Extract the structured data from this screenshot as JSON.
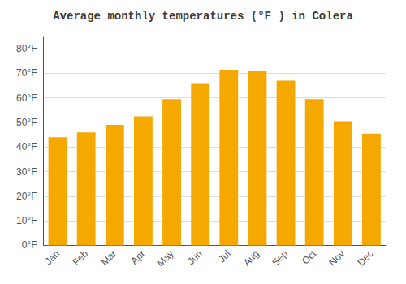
{
  "chart_data": {
    "type": "bar",
    "title": "Average monthly temperatures (°F ) in Colera",
    "categories": [
      "Jan",
      "Feb",
      "Mar",
      "Apr",
      "May",
      "Jun",
      "Jul",
      "Aug",
      "Sep",
      "Oct",
      "Nov",
      "Dec"
    ],
    "values": [
      44,
      46,
      49,
      52.5,
      59.5,
      66,
      71.5,
      71,
      67,
      59.5,
      50.5,
      45.5
    ],
    "color": "#F5A800",
    "ylim": [
      0,
      85
    ],
    "yticks": [
      {
        "value": 0,
        "label": "0°F"
      },
      {
        "value": 10,
        "label": "10°F"
      },
      {
        "value": 20,
        "label": "20°F"
      },
      {
        "value": 30,
        "label": "30°F"
      },
      {
        "value": 40,
        "label": "40°F"
      },
      {
        "value": 50,
        "label": "50°F"
      },
      {
        "value": 60,
        "label": "60°F"
      },
      {
        "value": 70,
        "label": "70°F"
      },
      {
        "value": 80,
        "label": "80°F"
      }
    ],
    "grid": true
  }
}
